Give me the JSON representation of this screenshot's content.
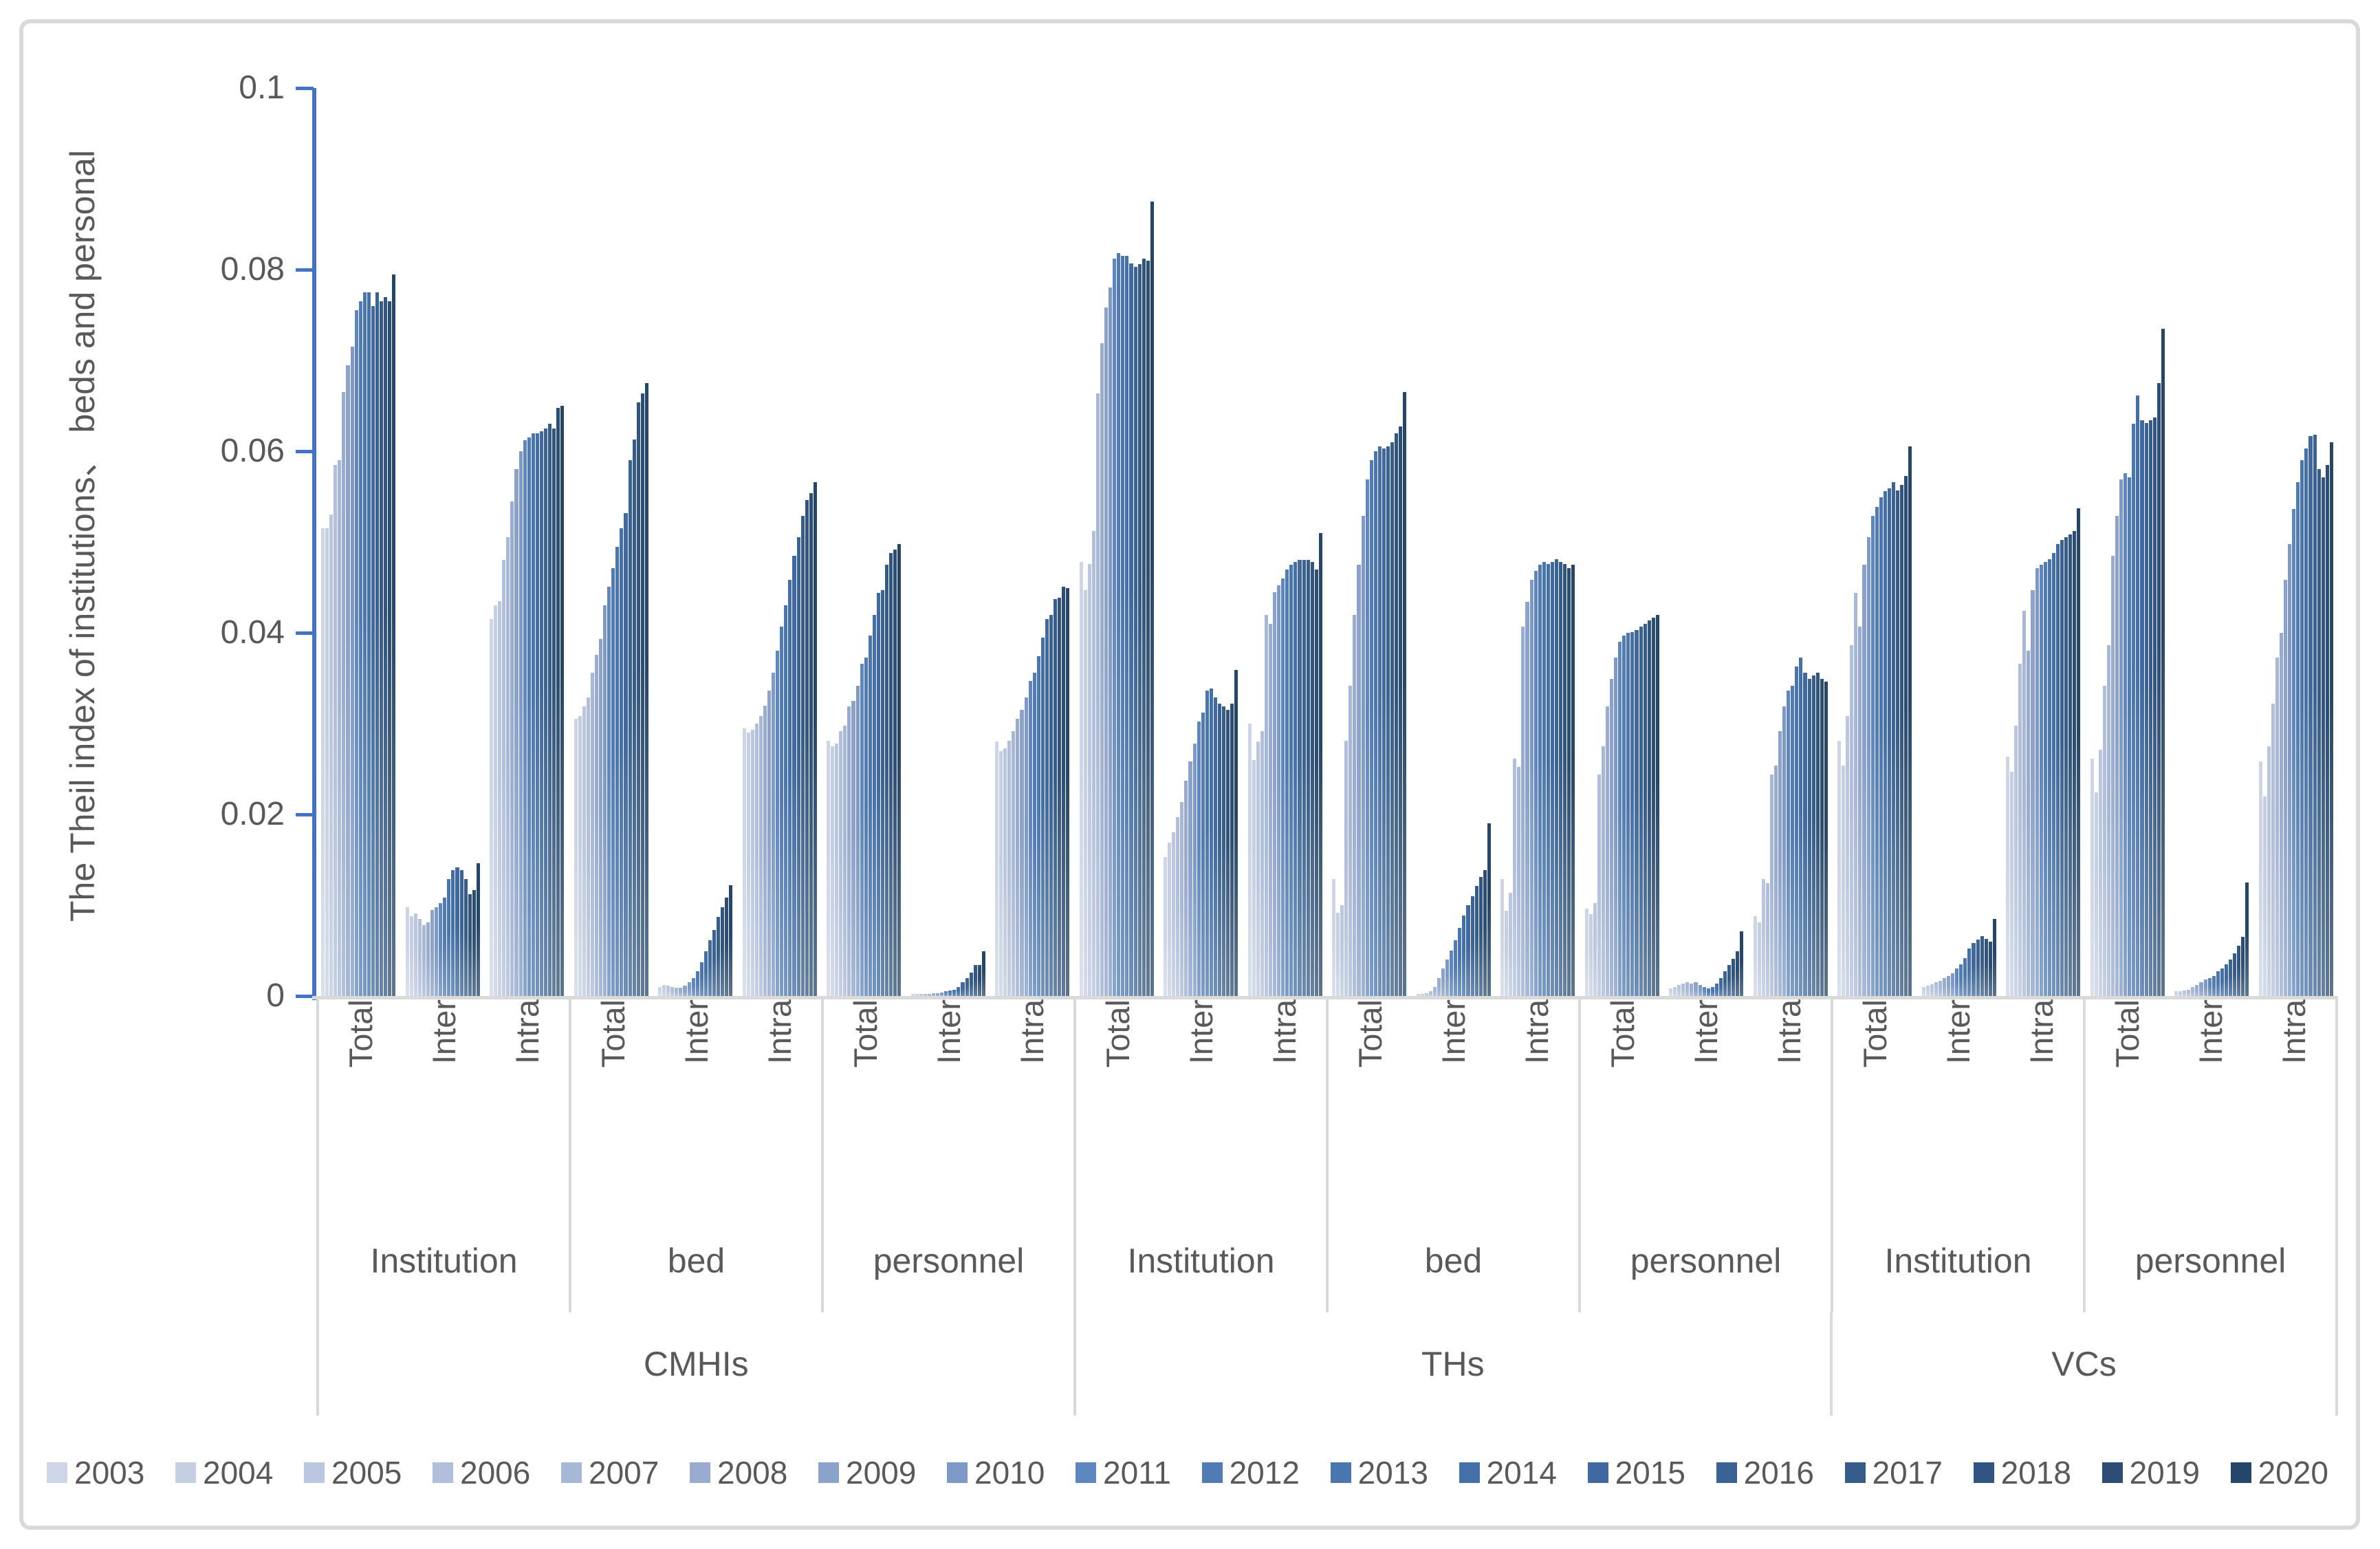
{
  "chart_data": {
    "type": "bar",
    "title": "",
    "ylabel": "The Theil index of institutions、 beds and personal",
    "xlabel": "",
    "ylim": [
      0,
      0.1
    ],
    "grid": false,
    "legend_position": "bottom",
    "axis_color": "#4472C4",
    "text_color": "#595959",
    "divider_color": "#D9D9D9",
    "yticks": [
      {
        "value": 0.1,
        "label": "0.1"
      },
      {
        "value": 0.08,
        "label": "0.08"
      },
      {
        "value": 0.06,
        "label": "0.06"
      },
      {
        "value": 0.04,
        "label": "0.04"
      },
      {
        "value": 0.02,
        "label": "0.02"
      },
      {
        "value": 0,
        "label": "0"
      }
    ],
    "years": [
      "2003",
      "2004",
      "2005",
      "2006",
      "2007",
      "2008",
      "2009",
      "2010",
      "2011",
      "2012",
      "2013",
      "2014",
      "2015",
      "2016",
      "2017",
      "2018",
      "2019",
      "2020"
    ],
    "year_colors": [
      "#CDD5E7",
      "#C5CFE4",
      "#BBC7E0",
      "#B1BFDC",
      "#A6B7D7",
      "#99ABD1",
      "#8BA2CB",
      "#7E99C6",
      "#5F87BF",
      "#507BB5",
      "#4A76B0",
      "#4470AA",
      "#3F69A0",
      "#3A6295",
      "#365C8B",
      "#315580",
      "#2C4D75",
      "#264669"
    ],
    "groups": [
      {
        "label": "CMHIs",
        "subgroups": [
          {
            "label": "Institution",
            "clusters": [
              {
                "label": "Total",
                "values": [
                  0.0515,
                  0.0515,
                  0.053,
                  0.0585,
                  0.059,
                  0.0665,
                  0.0695,
                  0.0715,
                  0.0755,
                  0.0765,
                  0.0775,
                  0.0775,
                  0.076,
                  0.0775,
                  0.0765,
                  0.077,
                  0.0765,
                  0.0795
                ]
              },
              {
                "label": "Inter",
                "values": [
                  0.0098,
                  0.0088,
                  0.0091,
                  0.0085,
                  0.0078,
                  0.0081,
                  0.0095,
                  0.0098,
                  0.0102,
                  0.0108,
                  0.0129,
                  0.0139,
                  0.0142,
                  0.0139,
                  0.0129,
                  0.0112,
                  0.0117,
                  0.0146
                ]
              },
              {
                "label": "Intra",
                "values": [
                  0.0415,
                  0.043,
                  0.0435,
                  0.048,
                  0.0505,
                  0.0545,
                  0.058,
                  0.06,
                  0.0612,
                  0.0615,
                  0.062,
                  0.062,
                  0.0622,
                  0.0625,
                  0.063,
                  0.0625,
                  0.0648,
                  0.065
                ]
              }
            ]
          },
          {
            "label": "bed",
            "clusters": [
              {
                "label": "Total",
                "values": [
                  0.0305,
                  0.0308,
                  0.0319,
                  0.0329,
                  0.0356,
                  0.0376,
                  0.0393,
                  0.043,
                  0.0451,
                  0.0471,
                  0.0495,
                  0.0515,
                  0.0532,
                  0.059,
                  0.0613,
                  0.0654,
                  0.0664,
                  0.0675
                ]
              },
              {
                "label": "Inter",
                "values": [
                  0.001,
                  0.0012,
                  0.0011,
                  0.001,
                  0.0009,
                  0.0009,
                  0.0011,
                  0.0015,
                  0.002,
                  0.0027,
                  0.0037,
                  0.0049,
                  0.0061,
                  0.0073,
                  0.0087,
                  0.0098,
                  0.0108,
                  0.0122
                ]
              },
              {
                "label": "Intra",
                "values": [
                  0.0295,
                  0.029,
                  0.0293,
                  0.03,
                  0.0308,
                  0.032,
                  0.0336,
                  0.0356,
                  0.038,
                  0.0407,
                  0.043,
                  0.0458,
                  0.0485,
                  0.0505,
                  0.0529,
                  0.0546,
                  0.0554,
                  0.0566
                ]
              }
            ]
          },
          {
            "label": "personnel",
            "clusters": [
              {
                "label": "Total",
                "values": [
                  0.0281,
                  0.0275,
                  0.0278,
                  0.0292,
                  0.0298,
                  0.0319,
                  0.0325,
                  0.0342,
                  0.0366,
                  0.0373,
                  0.0397,
                  0.042,
                  0.0444,
                  0.0447,
                  0.0475,
                  0.0488,
                  0.0492,
                  0.0498
                ]
              },
              {
                "label": "Inter",
                "values": [
                  0.0002,
                  0.0002,
                  0.0002,
                  0.0002,
                  0.0002,
                  0.0003,
                  0.0003,
                  0.0004,
                  0.0005,
                  0.0006,
                  0.0007,
                  0.001,
                  0.0015,
                  0.002,
                  0.0026,
                  0.0034,
                  0.0034,
                  0.0049
                ]
              },
              {
                "label": "Intra",
                "values": [
                  0.028,
                  0.027,
                  0.0273,
                  0.0281,
                  0.0292,
                  0.0305,
                  0.0315,
                  0.0329,
                  0.0347,
                  0.0356,
                  0.0374,
                  0.0395,
                  0.0415,
                  0.042,
                  0.0437,
                  0.0439,
                  0.0451,
                  0.0449
                ]
              }
            ]
          }
        ]
      },
      {
        "label": "THs",
        "subgroups": [
          {
            "label": "Institution",
            "clusters": [
              {
                "label": "Total",
                "values": [
                  0.0478,
                  0.0447,
                  0.0476,
                  0.0512,
                  0.0664,
                  0.0719,
                  0.0758,
                  0.078,
                  0.0812,
                  0.0818,
                  0.0815,
                  0.0815,
                  0.0807,
                  0.0803,
                  0.0806,
                  0.0812,
                  0.081,
                  0.0875
                ]
              },
              {
                "label": "Inter",
                "values": [
                  0.0153,
                  0.0169,
                  0.018,
                  0.0197,
                  0.0214,
                  0.0237,
                  0.0258,
                  0.0278,
                  0.0302,
                  0.0312,
                  0.0336,
                  0.0339,
                  0.0329,
                  0.0322,
                  0.0319,
                  0.0315,
                  0.0322,
                  0.0359
                ]
              },
              {
                "label": "Intra",
                "values": [
                  0.03,
                  0.026,
                  0.028,
                  0.0292,
                  0.042,
                  0.041,
                  0.0445,
                  0.0452,
                  0.046,
                  0.047,
                  0.0475,
                  0.0478,
                  0.048,
                  0.048,
                  0.048,
                  0.0478,
                  0.047,
                  0.051
                ]
              }
            ]
          },
          {
            "label": "bed",
            "clusters": [
              {
                "label": "Total",
                "values": [
                  0.0129,
                  0.0092,
                  0.01,
                  0.0281,
                  0.0342,
                  0.042,
                  0.0475,
                  0.0529,
                  0.0569,
                  0.059,
                  0.06,
                  0.0605,
                  0.0603,
                  0.0605,
                  0.061,
                  0.062,
                  0.0627,
                  0.0665
                ]
              },
              {
                "label": "Inter",
                "values": [
                  0.0002,
                  0.0002,
                  0.0003,
                  0.0005,
                  0.001,
                  0.002,
                  0.003,
                  0.004,
                  0.005,
                  0.0061,
                  0.0075,
                  0.0089,
                  0.01,
                  0.011,
                  0.0121,
                  0.0131,
                  0.0139,
                  0.019
                ]
              },
              {
                "label": "Intra",
                "values": [
                  0.0129,
                  0.0094,
                  0.0114,
                  0.0261,
                  0.0252,
                  0.0407,
                  0.0434,
                  0.0458,
                  0.0468,
                  0.0475,
                  0.0478,
                  0.0476,
                  0.0478,
                  0.0481,
                  0.0478,
                  0.0476,
                  0.0471,
                  0.0475
                ]
              }
            ]
          },
          {
            "label": "personnel",
            "clusters": [
              {
                "label": "Total",
                "values": [
                  0.0096,
                  0.009,
                  0.0102,
                  0.0244,
                  0.0275,
                  0.0319,
                  0.0349,
                  0.0373,
                  0.039,
                  0.0397,
                  0.04,
                  0.0401,
                  0.0403,
                  0.0407,
                  0.041,
                  0.0414,
                  0.0417,
                  0.042
                ]
              },
              {
                "label": "Inter",
                "values": [
                  0.0008,
                  0.001,
                  0.0012,
                  0.0014,
                  0.0015,
                  0.0014,
                  0.0015,
                  0.0012,
                  0.001,
                  0.0008,
                  0.001,
                  0.0014,
                  0.002,
                  0.0027,
                  0.0034,
                  0.0041,
                  0.0049,
                  0.0071
                ]
              },
              {
                "label": "Intra",
                "values": [
                  0.0088,
                  0.0081,
                  0.0129,
                  0.0124,
                  0.0244,
                  0.0254,
                  0.0292,
                  0.0319,
                  0.0336,
                  0.0342,
                  0.0363,
                  0.0373,
                  0.0356,
                  0.0349,
                  0.0353,
                  0.0356,
                  0.0349,
                  0.0346
                ]
              }
            ]
          }
        ]
      },
      {
        "label": "VCs",
        "subgroups": [
          {
            "label": "Institution",
            "clusters": [
              {
                "label": "Total",
                "values": [
                  0.0281,
                  0.0254,
                  0.0308,
                  0.0386,
                  0.0444,
                  0.0407,
                  0.0475,
                  0.0505,
                  0.0529,
                  0.0539,
                  0.0549,
                  0.0556,
                  0.0559,
                  0.0566,
                  0.0557,
                  0.0563,
                  0.0573,
                  0.0605
                ]
              },
              {
                "label": "Inter",
                "values": [
                  0.001,
                  0.0011,
                  0.0013,
                  0.0015,
                  0.0017,
                  0.002,
                  0.0022,
                  0.0025,
                  0.003,
                  0.0035,
                  0.0042,
                  0.0052,
                  0.0058,
                  0.0062,
                  0.0066,
                  0.0063,
                  0.006,
                  0.0085
                ]
              },
              {
                "label": "Intra",
                "values": [
                  0.0264,
                  0.0247,
                  0.0298,
                  0.0366,
                  0.0424,
                  0.038,
                  0.0447,
                  0.0471,
                  0.0475,
                  0.0478,
                  0.0481,
                  0.0488,
                  0.0498,
                  0.0502,
                  0.0505,
                  0.0508,
                  0.0512,
                  0.0537
                ]
              }
            ]
          },
          {
            "label": "personnel",
            "clusters": [
              {
                "label": "Total",
                "values": [
                  0.0261,
                  0.0224,
                  0.0271,
                  0.0342,
                  0.0386,
                  0.0485,
                  0.0529,
                  0.0569,
                  0.0576,
                  0.0571,
                  0.063,
                  0.0661,
                  0.0634,
                  0.0631,
                  0.0634,
                  0.0637,
                  0.0675,
                  0.0735
                ]
              },
              {
                "label": "Inter",
                "values": [
                  0.0005,
                  0.0005,
                  0.0006,
                  0.0007,
                  0.001,
                  0.0012,
                  0.0015,
                  0.0018,
                  0.002,
                  0.0022,
                  0.0027,
                  0.003,
                  0.0035,
                  0.004,
                  0.0047,
                  0.0055,
                  0.0065,
                  0.0125
                ]
              },
              {
                "label": "Intra",
                "values": [
                  0.0258,
                  0.022,
                  0.0275,
                  0.0322,
                  0.0373,
                  0.04,
                  0.0458,
                  0.0498,
                  0.0536,
                  0.0566,
                  0.059,
                  0.0603,
                  0.0617,
                  0.0618,
                  0.058,
                  0.0571,
                  0.0585,
                  0.061
                ]
              }
            ]
          }
        ]
      }
    ]
  }
}
